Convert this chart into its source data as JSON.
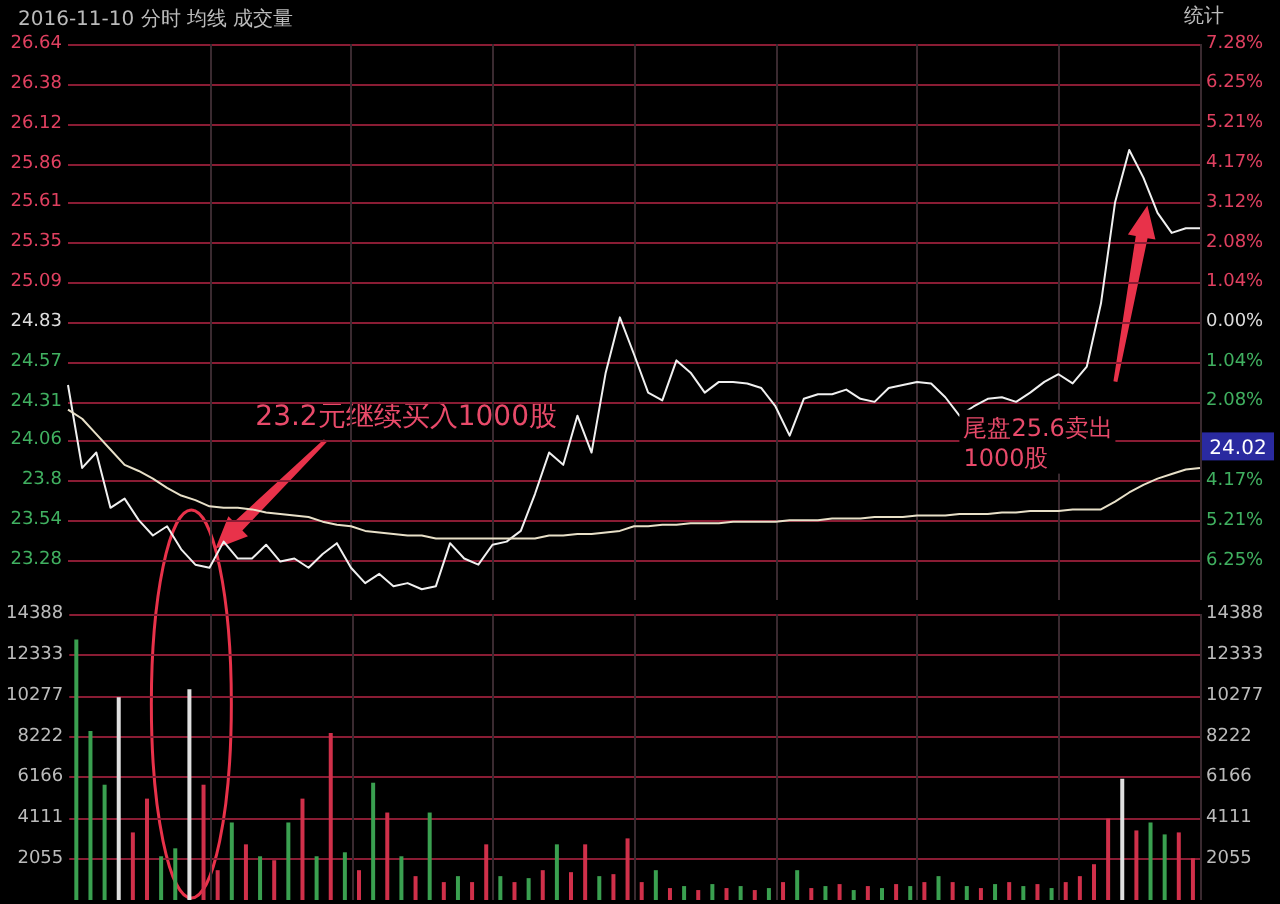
{
  "chart_data": [
    {
      "type": "line",
      "title": "2016-11-10 分时 均线 成交量",
      "categories": [
        null,
        null,
        null,
        null,
        null,
        null,
        null,
        null,
        null,
        null,
        null,
        null,
        null,
        null,
        null,
        null,
        null,
        null,
        null,
        null,
        null,
        null,
        null,
        null,
        null,
        null,
        null,
        null,
        null,
        null,
        null,
        null,
        null,
        null,
        null,
        null,
        null,
        null,
        null,
        null,
        null,
        null,
        null,
        null,
        null,
        null,
        null,
        null,
        null,
        null,
        null,
        null,
        null,
        null,
        null,
        null,
        null,
        null,
        null,
        null,
        null,
        null,
        null,
        null,
        null,
        null,
        null,
        null,
        null,
        null,
        null,
        null,
        null,
        null,
        null,
        null,
        null,
        null,
        null,
        null,
        null
      ],
      "series": [
        {
          "color": "#f0f0f0",
          "values": [
            24.42,
            23.88,
            23.98,
            23.62,
            23.68,
            23.54,
            23.44,
            23.5,
            23.35,
            23.25,
            23.23,
            23.4,
            23.29,
            23.29,
            23.38,
            23.27,
            23.29,
            23.23,
            23.32,
            23.39,
            23.23,
            23.13,
            23.19,
            23.11,
            23.13,
            23.09,
            23.11,
            23.39,
            23.29,
            23.25,
            23.38,
            23.4,
            23.47,
            23.71,
            23.98,
            23.9,
            24.22,
            23.98,
            24.5,
            24.86,
            24.62,
            24.37,
            24.32,
            24.58,
            24.5,
            24.37,
            24.44,
            24.44,
            24.43,
            24.4,
            24.28,
            24.09,
            24.33,
            24.36,
            24.36,
            24.39,
            24.33,
            24.31,
            24.4,
            24.42,
            24.44,
            24.43,
            24.34,
            24.22,
            24.28,
            24.33,
            24.34,
            24.31,
            24.37,
            24.44,
            24.49,
            24.43,
            24.54,
            24.95,
            25.61,
            25.95,
            25.77,
            25.54,
            25.41,
            25.44,
            25.44
          ]
        },
        {
          "color": "#e8e0c8",
          "values": [
            24.26,
            24.2,
            24.1,
            24.0,
            23.9,
            23.86,
            23.81,
            23.75,
            23.7,
            23.67,
            23.63,
            23.62,
            23.62,
            23.61,
            23.59,
            23.58,
            23.57,
            23.56,
            23.53,
            23.51,
            23.5,
            23.47,
            23.46,
            23.45,
            23.44,
            23.44,
            23.42,
            23.42,
            23.42,
            23.42,
            23.42,
            23.42,
            23.42,
            23.42,
            23.44,
            23.44,
            23.45,
            23.45,
            23.46,
            23.47,
            23.5,
            23.5,
            23.51,
            23.51,
            23.52,
            23.52,
            23.52,
            23.53,
            23.53,
            23.53,
            23.53,
            23.54,
            23.54,
            23.54,
            23.55,
            23.55,
            23.55,
            23.56,
            23.56,
            23.56,
            23.57,
            23.57,
            23.57,
            23.58,
            23.58,
            23.58,
            23.59,
            23.59,
            23.6,
            23.6,
            23.6,
            23.61,
            23.61,
            23.61,
            23.66,
            23.72,
            23.77,
            23.81,
            23.84,
            23.87,
            23.88
          ]
        }
      ],
      "grid": true,
      "ylim": [
        23.02,
        26.64
      ],
      "yticks": [
        26.64,
        26.38,
        26.12,
        25.86,
        25.61,
        25.35,
        25.09,
        24.83,
        24.57,
        24.31,
        24.06,
        23.8,
        23.54,
        23.28
      ],
      "y2lim": [
        -7.28,
        7.28
      ],
      "y2ticks": [
        {
          "value": 7.28,
          "label": "7.28%"
        },
        {
          "value": 6.25,
          "label": "6.25%"
        },
        {
          "value": 5.21,
          "label": "5.21%"
        },
        {
          "value": 4.17,
          "label": "4.17%"
        },
        {
          "value": 3.12,
          "label": "3.12%"
        },
        {
          "value": 2.08,
          "label": "2.08%"
        },
        {
          "value": 1.04,
          "label": "1.04%"
        },
        {
          "value": 0,
          "label": "0.00%"
        },
        {
          "value": -1.04,
          "label": "1.04%"
        },
        {
          "value": -2.08,
          "label": "2.08%"
        },
        {
          "value": -3.12,
          "label": null
        },
        {
          "value": -4.17,
          "label": "4.17%"
        },
        {
          "value": -5.21,
          "label": "5.21%"
        },
        {
          "value": -6.25,
          "label": "6.25%"
        }
      ],
      "annotations": [
        "统计",
        "24.02",
        "23.2元继续买入1000股",
        "尾盘25.6卖出1000股"
      ]
    },
    {
      "type": "bar",
      "categories": [
        null,
        null,
        null,
        null,
        null,
        null,
        null,
        null,
        null,
        null,
        null,
        null,
        null,
        null,
        null,
        null,
        null,
        null,
        null,
        null,
        null,
        null,
        null,
        null,
        null,
        null,
        null,
        null,
        null,
        null,
        null,
        null,
        null,
        null,
        null,
        null,
        null,
        null,
        null,
        null,
        null,
        null,
        null,
        null,
        null,
        null,
        null,
        null,
        null,
        null,
        null,
        null,
        null,
        null,
        null,
        null,
        null,
        null,
        null,
        null,
        null,
        null,
        null,
        null,
        null,
        null,
        null,
        null,
        null,
        null,
        null,
        null,
        null,
        null,
        null,
        null,
        null,
        null,
        null,
        null
      ],
      "values": [
        13100,
        8500,
        5800,
        10200,
        3400,
        5100,
        2200,
        2600,
        10600,
        5800,
        1500,
        3900,
        2800,
        2200,
        2000,
        3900,
        5100,
        2200,
        8400,
        2400,
        1500,
        5900,
        4400,
        2200,
        1200,
        4400,
        900,
        1200,
        900,
        2800,
        1200,
        900,
        1100,
        1500,
        2800,
        1400,
        2800,
        1200,
        1300,
        3100,
        900,
        1500,
        600,
        700,
        500,
        800,
        600,
        700,
        500,
        600,
        900,
        1500,
        600,
        700,
        800,
        500,
        700,
        600,
        800,
        700,
        900,
        1200,
        900,
        700,
        600,
        800,
        900,
        700,
        800,
        600,
        900,
        1200,
        1800,
        4100,
        6100,
        3500,
        3900,
        3300,
        3400,
        2100
      ],
      "colors": [
        "#3aa050",
        "#3aa050",
        "#3aa050",
        "#e0e0e0",
        "#d0304a",
        "#d0304a",
        "#3aa050",
        "#3aa050",
        "#e0e0e0",
        "#d0304a",
        "#d0304a",
        "#3aa050",
        "#d0304a",
        "#3aa050",
        "#d0304a",
        "#3aa050",
        "#d0304a",
        "#3aa050",
        "#d0304a",
        "#3aa050",
        "#d0304a",
        "#3aa050",
        "#d0304a",
        "#3aa050",
        "#d0304a",
        "#3aa050",
        "#d0304a",
        "#3aa050",
        "#d0304a",
        "#d0304a",
        "#3aa050",
        "#d0304a",
        "#3aa050",
        "#d0304a",
        "#3aa050",
        "#d0304a",
        "#d0304a",
        "#3aa050",
        "#d0304a",
        "#d0304a",
        "#d0304a",
        "#3aa050",
        "#d0304a",
        "#3aa050",
        "#d0304a",
        "#3aa050",
        "#d0304a",
        "#3aa050",
        "#d0304a",
        "#3aa050",
        "#d0304a",
        "#3aa050",
        "#d0304a",
        "#3aa050",
        "#d0304a",
        "#3aa050",
        "#d0304a",
        "#3aa050",
        "#d0304a",
        "#3aa050",
        "#d0304a",
        "#3aa050",
        "#d0304a",
        "#3aa050",
        "#d0304a",
        "#3aa050",
        "#d0304a",
        "#3aa050",
        "#d0304a",
        "#3aa050",
        "#d0304a",
        "#d0304a",
        "#d0304a",
        "#d0304a",
        "#e0e0e0",
        "#d0304a",
        "#3aa050",
        "#3aa050",
        "#d0304a",
        "#d0304a"
      ],
      "grid": true,
      "ylim": [
        0,
        14388
      ],
      "yticks": [
        2055,
        4111,
        6166,
        8222,
        10277,
        12333,
        14388
      ],
      "y2lim": [
        0,
        14388
      ],
      "y2ticks": [
        2055,
        4111,
        6166,
        8222,
        10277,
        12333,
        14388
      ]
    }
  ]
}
